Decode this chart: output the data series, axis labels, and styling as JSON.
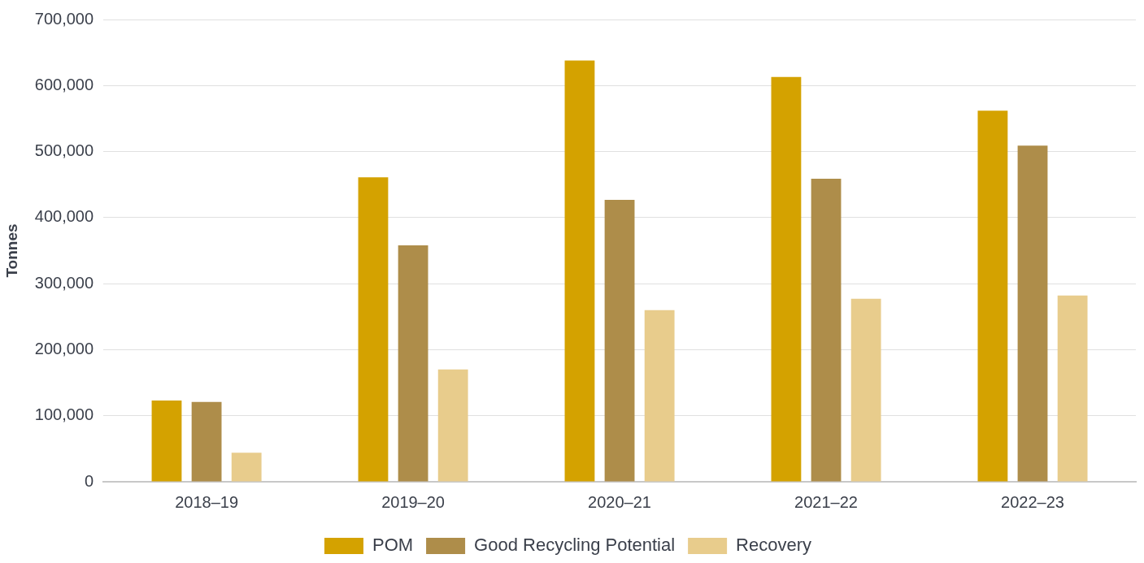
{
  "chart_data": {
    "type": "bar",
    "ylabel": "Tonnes",
    "categories": [
      "2018–19",
      "2019–20",
      "2020–21",
      "2021–22",
      "2022–23"
    ],
    "series": [
      {
        "name": "POM",
        "color": "#d4a200",
        "values": [
          123000,
          461000,
          638000,
          613000,
          562000
        ]
      },
      {
        "name": "Good Recycling Potential",
        "color": "#ae8d4a",
        "values": [
          121000,
          358000,
          427000,
          459000,
          509000
        ]
      },
      {
        "name": "Recovery",
        "color": "#e8cc8c",
        "values": [
          44000,
          170000,
          260000,
          277000,
          282000
        ]
      }
    ],
    "ylim": [
      0,
      700000
    ],
    "yticks": [
      {
        "value": 0,
        "label": "0"
      },
      {
        "value": 100000,
        "label": "100,000"
      },
      {
        "value": 200000,
        "label": "200,000"
      },
      {
        "value": 300000,
        "label": "300,000"
      },
      {
        "value": 400000,
        "label": "400,000"
      },
      {
        "value": 500000,
        "label": "500,000"
      },
      {
        "value": 600000,
        "label": "600,000"
      },
      {
        "value": 700000,
        "label": "700,000"
      }
    ],
    "grid": "y",
    "legend": "bottom"
  }
}
